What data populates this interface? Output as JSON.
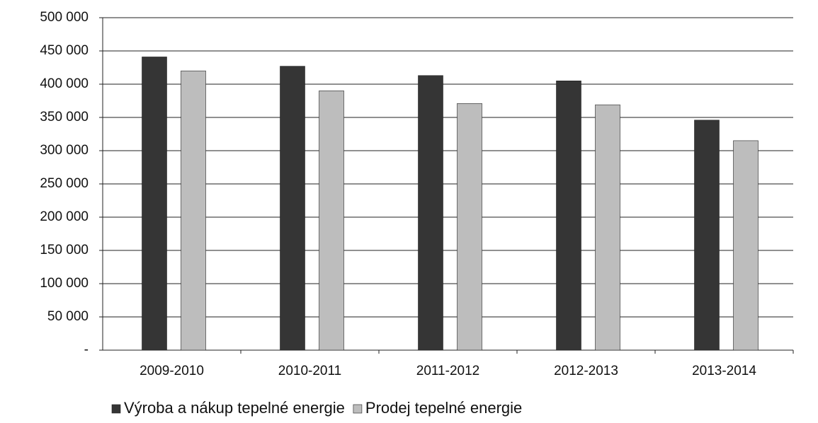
{
  "chart_data": {
    "type": "bar",
    "categories": [
      "2009-2010",
      "2010-2011",
      "2011-2012",
      "2012-2013",
      "2013-2014"
    ],
    "series": [
      {
        "name": "Výroba a nákup tepelné energie",
        "color": "#353535",
        "values": [
          441000,
          427000,
          413000,
          405000,
          346000
        ]
      },
      {
        "name": "Prodej tepelné energie",
        "color": "#bdbdbd",
        "values": [
          420000,
          390000,
          371000,
          369000,
          315000
        ]
      }
    ],
    "ylim": [
      0,
      500000
    ],
    "yticks": [
      {
        "value": 0,
        "label": "-"
      },
      {
        "value": 50000,
        "label": "50 000"
      },
      {
        "value": 100000,
        "label": "100 000"
      },
      {
        "value": 150000,
        "label": "150 000"
      },
      {
        "value": 200000,
        "label": "200 000"
      },
      {
        "value": 250000,
        "label": "250 000"
      },
      {
        "value": 300000,
        "label": "300 000"
      },
      {
        "value": 350000,
        "label": "350 000"
      },
      {
        "value": 400000,
        "label": "400 000"
      },
      {
        "value": 450000,
        "label": "450 000"
      },
      {
        "value": 500000,
        "label": "500 000"
      }
    ],
    "grid": true,
    "legend": "bottom"
  }
}
